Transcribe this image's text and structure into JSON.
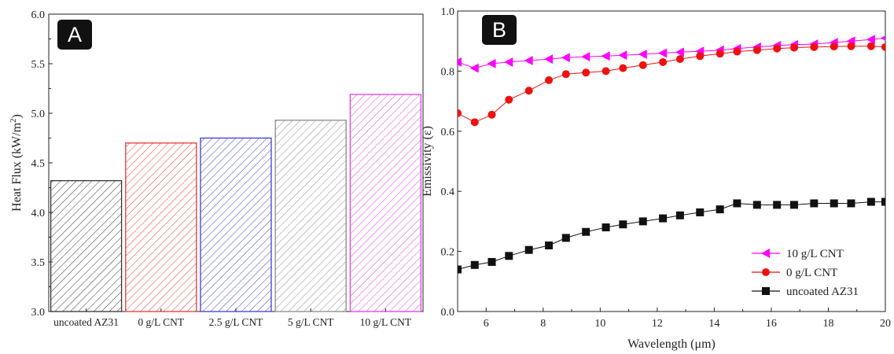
{
  "chart_data": [
    {
      "panel": "A",
      "type": "bar",
      "ylabel": "Heat Flux (kW/m",
      "ylabel_sup": "2",
      "ylabel_tail": ")",
      "xlabel": "",
      "ylim": [
        3.0,
        6.0
      ],
      "yticks": [
        "3.0",
        "3.5",
        "4.0",
        "4.5",
        "5.0",
        "5.5",
        "6.0"
      ],
      "categories": [
        "uncoated AZ31",
        "0 g/L CNT",
        "2.5 g/L CNT",
        "5 g/L CNT",
        "10 g/L CNT"
      ],
      "values": [
        4.32,
        4.7,
        4.75,
        4.93,
        5.19
      ],
      "colors": [
        "#333333",
        "#e53935",
        "#3f3fd0",
        "#8a8a8a",
        "#e040e0"
      ]
    },
    {
      "panel": "B",
      "type": "line",
      "xlabel": "Wavelength (μm)",
      "ylabel": "Emissivity (ε)",
      "xlim": [
        5,
        20
      ],
      "ylim": [
        0.0,
        1.0
      ],
      "xticks": [
        "6",
        "8",
        "10",
        "12",
        "14",
        "16",
        "18",
        "20"
      ],
      "yticks": [
        "0.0",
        "0.2",
        "0.4",
        "0.6",
        "0.8",
        "1.0"
      ],
      "legend_position": "bottom-right",
      "series": [
        {
          "name": "10 g/L CNT",
          "color": "#ff00ff",
          "marker": "triangle-left",
          "x": [
            5.0,
            5.6,
            6.2,
            6.8,
            7.5,
            8.2,
            8.8,
            9.5,
            10.2,
            10.8,
            11.5,
            12.2,
            12.8,
            13.5,
            14.2,
            14.8,
            15.5,
            16.2,
            16.8,
            17.5,
            18.2,
            18.8,
            19.5,
            20.0
          ],
          "y": [
            0.83,
            0.81,
            0.825,
            0.83,
            0.835,
            0.84,
            0.845,
            0.848,
            0.85,
            0.853,
            0.856,
            0.86,
            0.863,
            0.866,
            0.87,
            0.875,
            0.88,
            0.885,
            0.888,
            0.89,
            0.895,
            0.9,
            0.905,
            0.91
          ]
        },
        {
          "name": "0 g/L CNT",
          "color": "#ee1111",
          "marker": "circle",
          "x": [
            5.0,
            5.6,
            6.2,
            6.8,
            7.5,
            8.2,
            8.8,
            9.5,
            10.2,
            10.8,
            11.5,
            12.2,
            12.8,
            13.5,
            14.2,
            14.8,
            15.5,
            16.2,
            16.8,
            17.5,
            18.2,
            18.8,
            19.5,
            20.0
          ],
          "y": [
            0.66,
            0.63,
            0.655,
            0.705,
            0.735,
            0.77,
            0.79,
            0.795,
            0.8,
            0.81,
            0.82,
            0.83,
            0.84,
            0.85,
            0.858,
            0.865,
            0.87,
            0.875,
            0.878,
            0.88,
            0.882,
            0.883,
            0.883,
            0.88
          ]
        },
        {
          "name": "uncoated AZ31",
          "color": "#111111",
          "marker": "square",
          "x": [
            5.0,
            5.6,
            6.2,
            6.8,
            7.5,
            8.2,
            8.8,
            9.5,
            10.2,
            10.8,
            11.5,
            12.2,
            12.8,
            13.5,
            14.2,
            14.8,
            15.5,
            16.2,
            16.8,
            17.5,
            18.2,
            18.8,
            19.5,
            20.0
          ],
          "y": [
            0.14,
            0.155,
            0.165,
            0.185,
            0.205,
            0.22,
            0.245,
            0.265,
            0.28,
            0.29,
            0.3,
            0.31,
            0.32,
            0.33,
            0.34,
            0.36,
            0.355,
            0.355,
            0.355,
            0.36,
            0.36,
            0.36,
            0.365,
            0.365
          ]
        }
      ]
    }
  ],
  "panel_labels": {
    "a": "A",
    "b": "B"
  }
}
